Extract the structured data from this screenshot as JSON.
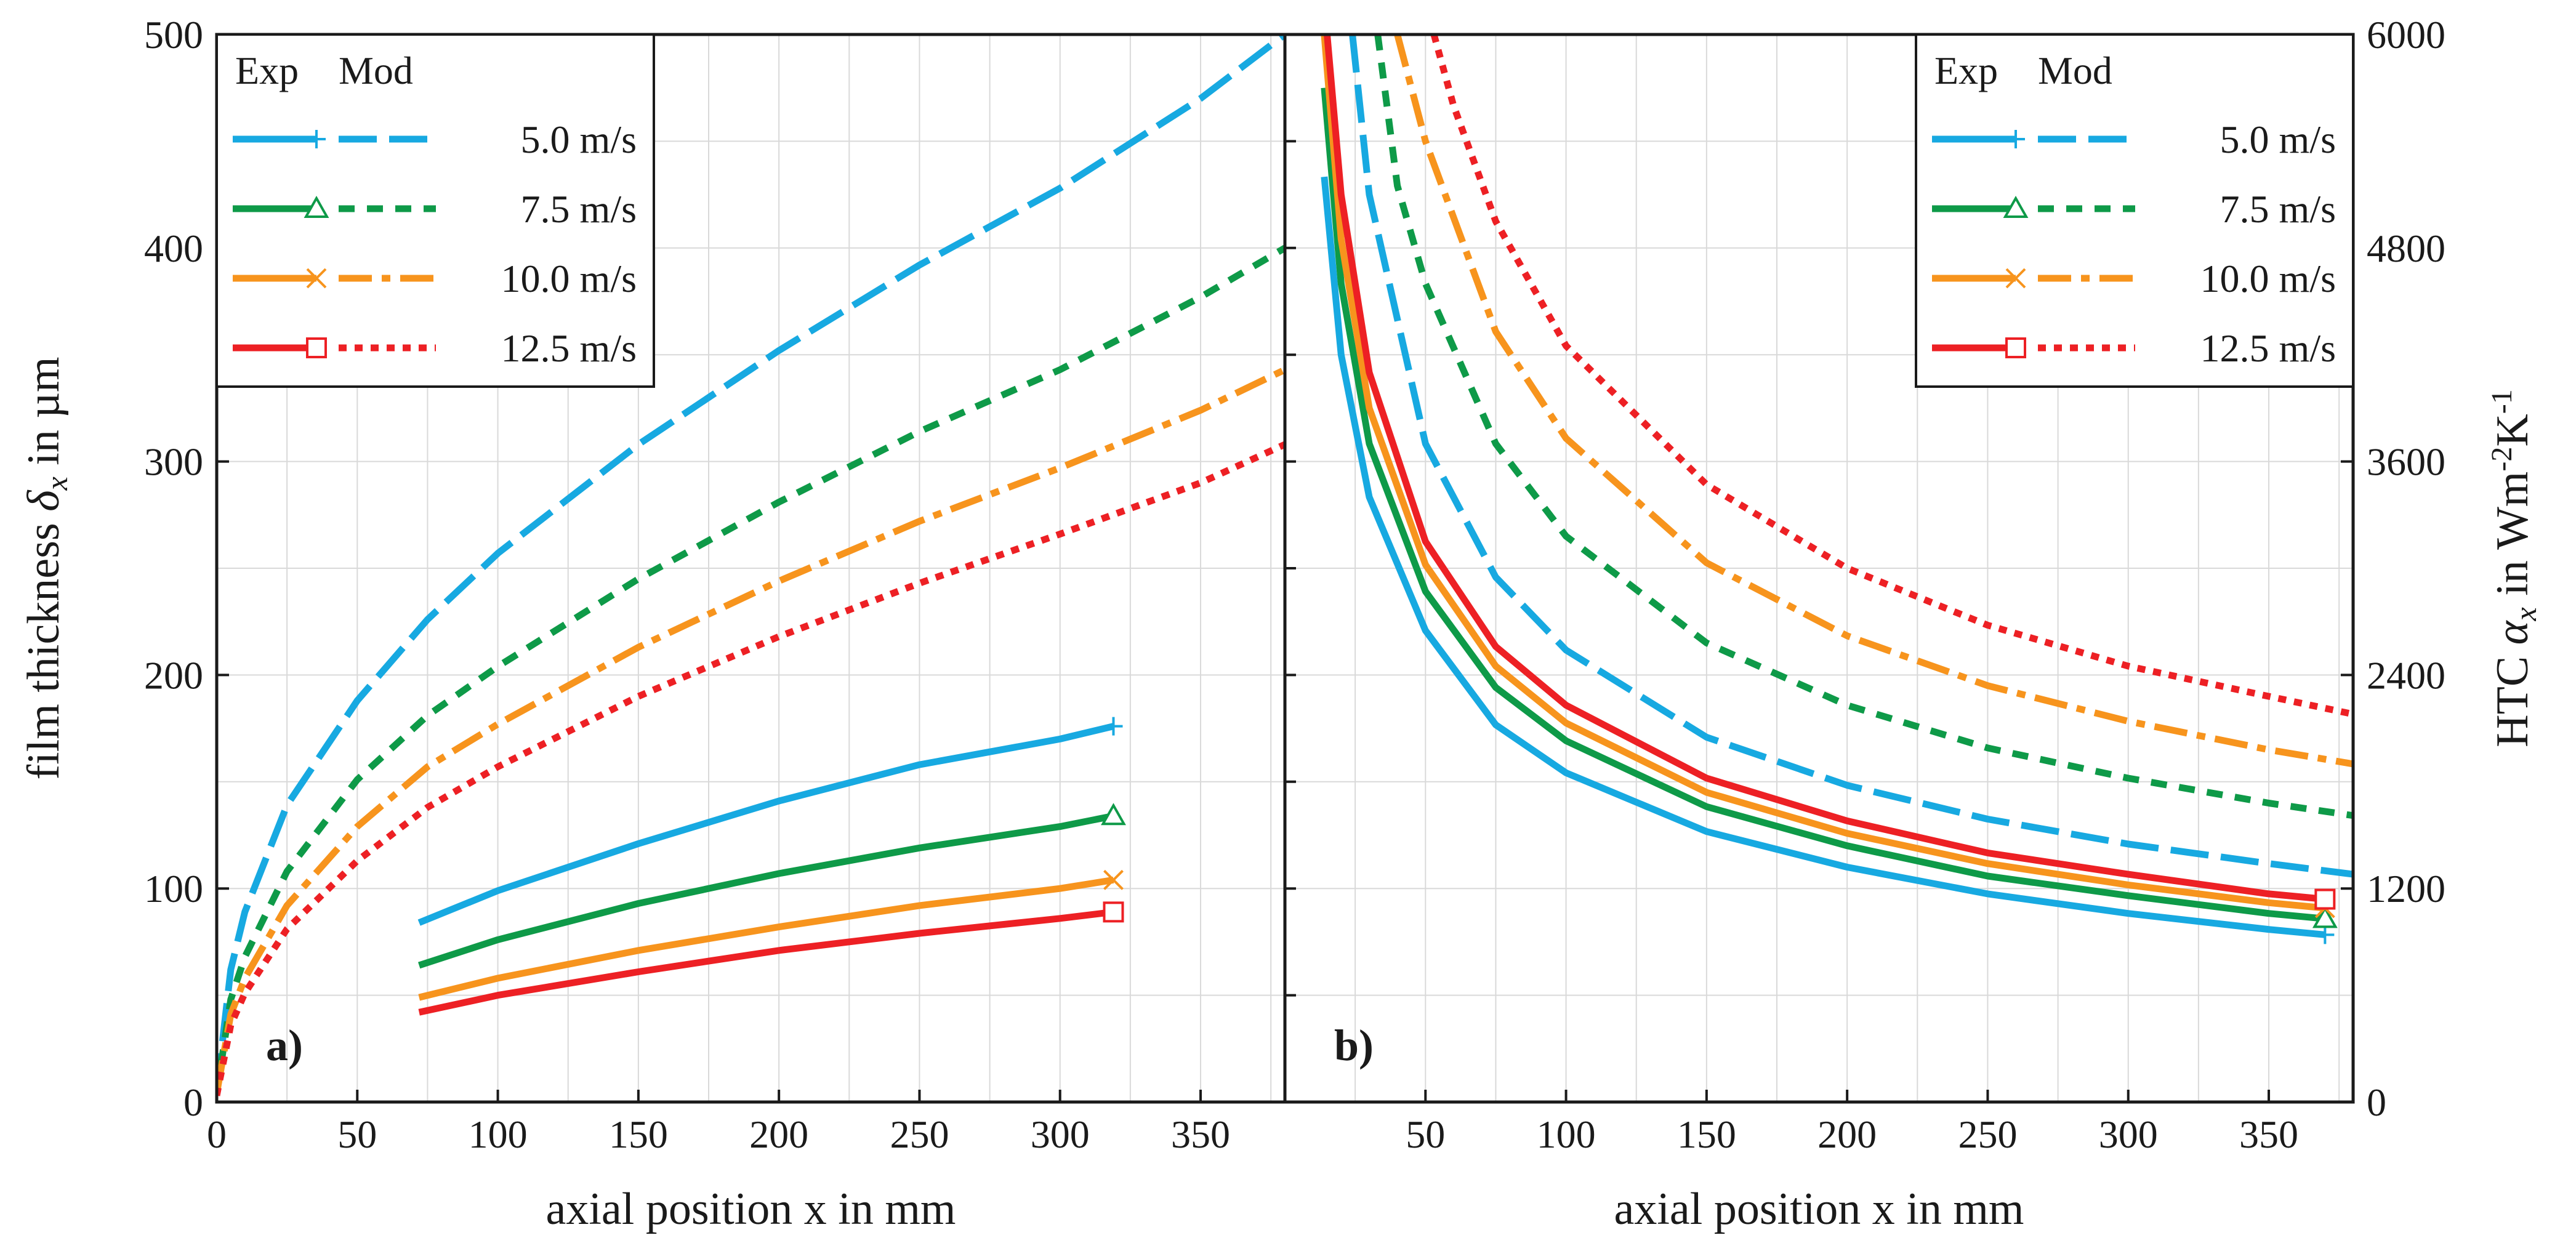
{
  "chart_data": [
    {
      "type": "line",
      "panel_label": "a)",
      "xlabel": "axial position x in mm",
      "ylabel": "film thickness δx in µm",
      "xlim": [
        0,
        380
      ],
      "ylim": [
        0,
        500
      ],
      "xticks": [
        0,
        50,
        100,
        150,
        200,
        250,
        300,
        350
      ],
      "yticks": [
        0,
        100,
        200,
        300,
        400,
        500
      ],
      "x_minor_step": 25,
      "y_minor_step": 50,
      "grid": true,
      "legend": {
        "position": "top-left",
        "header_exp": "Exp",
        "header_mod": "Mod",
        "entries": [
          "5.0 m/s",
          "7.5 m/s",
          "10.0 m/s",
          "12.5 m/s"
        ]
      },
      "series": [
        {
          "name": "Exp 5.0 m/s",
          "color": "#17a9e1",
          "dash": "solid",
          "marker": "plus",
          "x": [
            72,
            100,
            150,
            200,
            250,
            300,
            319
          ],
          "y": [
            84,
            99,
            121,
            141,
            158,
            170,
            176
          ]
        },
        {
          "name": "Exp 7.5 m/s",
          "color": "#0e9a48",
          "dash": "solid",
          "marker": "triangle",
          "x": [
            72,
            100,
            150,
            200,
            250,
            300,
            319
          ],
          "y": [
            64,
            76,
            93,
            107,
            119,
            129,
            134
          ]
        },
        {
          "name": "Exp 10.0 m/s",
          "color": "#f7941d",
          "dash": "solid",
          "marker": "cross",
          "x": [
            72,
            100,
            150,
            200,
            250,
            300,
            319
          ],
          "y": [
            49,
            58,
            71,
            82,
            92,
            100,
            104
          ]
        },
        {
          "name": "Exp 12.5 m/s",
          "color": "#ed2024",
          "dash": "solid",
          "marker": "square",
          "x": [
            72,
            100,
            150,
            200,
            250,
            300,
            319
          ],
          "y": [
            42,
            50,
            61,
            71,
            79,
            86,
            89
          ]
        },
        {
          "name": "Mod 5.0 m/s",
          "color": "#17a9e1",
          "dash": "longdash",
          "marker": "none",
          "x": [
            0,
            5,
            10,
            25,
            50,
            75,
            100,
            150,
            200,
            250,
            300,
            350,
            380
          ],
          "y": [
            5,
            62,
            89,
            139,
            188,
            226,
            257,
            308,
            352,
            392,
            428,
            470,
            500
          ]
        },
        {
          "name": "Mod 7.5 m/s",
          "color": "#0e9a48",
          "dash": "short",
          "marker": "none",
          "x": [
            0,
            5,
            10,
            25,
            50,
            75,
            100,
            150,
            200,
            250,
            300,
            350,
            380
          ],
          "y": [
            4,
            48,
            68,
            108,
            151,
            181,
            204,
            245,
            281,
            314,
            343,
            377,
            400
          ]
        },
        {
          "name": "Mod 10.0 m/s",
          "color": "#f7941d",
          "dash": "dashdot",
          "marker": "none",
          "x": [
            0,
            5,
            10,
            25,
            50,
            75,
            100,
            150,
            200,
            250,
            300,
            350,
            380
          ],
          "y": [
            4,
            41,
            58,
            92,
            129,
            157,
            177,
            213,
            244,
            272,
            297,
            324,
            343
          ]
        },
        {
          "name": "Mod 12.5 m/s",
          "color": "#ed2024",
          "dash": "dotted",
          "marker": "none",
          "x": [
            0,
            5,
            10,
            25,
            50,
            75,
            100,
            150,
            200,
            250,
            300,
            350,
            380
          ],
          "y": [
            3,
            36,
            51,
            81,
            113,
            138,
            157,
            190,
            218,
            243,
            266,
            290,
            308
          ]
        }
      ]
    },
    {
      "type": "line",
      "panel_label": "b)",
      "xlabel": "axial position x in mm",
      "ylabel": "HTC αx in Wm-2K-1",
      "xlim": [
        0,
        380
      ],
      "ylim": [
        0,
        6000
      ],
      "xticks": [
        50,
        100,
        150,
        200,
        250,
        300,
        350
      ],
      "yticks": [
        0,
        1200,
        2400,
        3600,
        4800,
        6000
      ],
      "x_minor_step": 25,
      "y_minor_step": 600,
      "grid": true,
      "legend": {
        "position": "top-right",
        "header_exp": "Exp",
        "header_mod": "Mod",
        "entries": [
          "5.0 m/s",
          "7.5 m/s",
          "10.0 m/s",
          "12.5 m/s"
        ]
      },
      "series": [
        {
          "name": "Exp 5.0 m/s",
          "color": "#17a9e1",
          "dash": "solid",
          "marker": "plus",
          "x": [
            14,
            20,
            30,
            50,
            75,
            100,
            150,
            200,
            250,
            300,
            350,
            370
          ],
          "y": [
            5200,
            4200,
            3400,
            2650,
            2120,
            1850,
            1520,
            1320,
            1170,
            1060,
            970,
            940
          ]
        },
        {
          "name": "Exp 7.5 m/s",
          "color": "#0e9a48",
          "dash": "solid",
          "marker": "triangle",
          "x": [
            14,
            20,
            30,
            50,
            75,
            100,
            150,
            200,
            250,
            300,
            350,
            370
          ],
          "y": [
            5700,
            4600,
            3700,
            2870,
            2330,
            2030,
            1660,
            1440,
            1270,
            1160,
            1060,
            1030
          ]
        },
        {
          "name": "Exp 10.0 m/s",
          "color": "#f7941d",
          "dash": "solid",
          "marker": "cross",
          "x": [
            14,
            20,
            30,
            50,
            75,
            100,
            150,
            200,
            250,
            300,
            350,
            370
          ],
          "y": [
            6000,
            4850,
            3900,
            3020,
            2450,
            2130,
            1740,
            1510,
            1340,
            1220,
            1120,
            1090
          ]
        },
        {
          "name": "Exp 12.5 m/s",
          "color": "#ed2024",
          "dash": "solid",
          "marker": "square",
          "x": [
            15,
            20,
            30,
            50,
            75,
            100,
            150,
            200,
            250,
            300,
            350,
            370
          ],
          "y": [
            6000,
            5100,
            4100,
            3150,
            2560,
            2230,
            1820,
            1580,
            1400,
            1280,
            1170,
            1140
          ]
        },
        {
          "name": "Mod 5.0 m/s",
          "color": "#17a9e1",
          "dash": "longdash",
          "marker": "none",
          "x": [
            24,
            30,
            50,
            75,
            100,
            150,
            200,
            250,
            300,
            350,
            380
          ],
          "y": [
            6000,
            5100,
            3700,
            2950,
            2540,
            2050,
            1780,
            1590,
            1450,
            1340,
            1280
          ]
        },
        {
          "name": "Mod 7.5 m/s",
          "color": "#0e9a48",
          "dash": "short",
          "marker": "none",
          "x": [
            33,
            40,
            50,
            75,
            100,
            150,
            200,
            250,
            300,
            350,
            380
          ],
          "y": [
            6000,
            5150,
            4600,
            3700,
            3180,
            2580,
            2230,
            1990,
            1820,
            1680,
            1610
          ]
        },
        {
          "name": "Mod 10.0 m/s",
          "color": "#f7941d",
          "dash": "dashdot",
          "marker": "none",
          "x": [
            40,
            50,
            75,
            100,
            150,
            200,
            250,
            300,
            350,
            380
          ],
          "y": [
            6000,
            5400,
            4330,
            3730,
            3030,
            2620,
            2340,
            2140,
            1980,
            1900
          ]
        },
        {
          "name": "Mod 12.5 m/s",
          "color": "#ed2024",
          "dash": "dotted",
          "marker": "none",
          "x": [
            53,
            60,
            75,
            100,
            150,
            200,
            250,
            300,
            350,
            380
          ],
          "y": [
            6000,
            5600,
            4950,
            4250,
            3470,
            3000,
            2680,
            2450,
            2280,
            2180
          ]
        }
      ]
    }
  ]
}
